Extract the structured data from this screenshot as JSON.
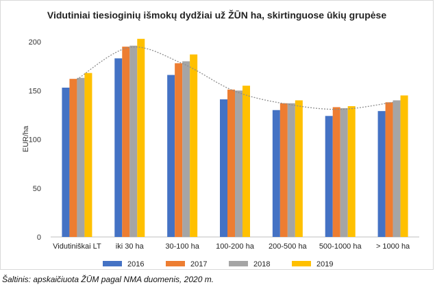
{
  "chart_data": {
    "type": "bar",
    "title": "Vidutiniai tiesioginių išmokų dydžiai už ŽŪN ha, skirtinguose ūkių grupėse",
    "xlabel": "",
    "ylabel": "EUR/ha",
    "ylim": [
      0,
      200
    ],
    "yticks": [
      0,
      50,
      100,
      150,
      200
    ],
    "grid": false,
    "legend": "bottom",
    "categories": [
      "Vidutiniškai LT",
      "iki 30 ha",
      "30-100 ha",
      "100-200 ha",
      "200-500 ha",
      "500-1000 ha",
      "> 1000 ha"
    ],
    "series": [
      {
        "name": "2016",
        "color": "#4472c4",
        "values": [
          153,
          183,
          166,
          141,
          130,
          124,
          129
        ]
      },
      {
        "name": "2017",
        "color": "#ed7d31",
        "values": [
          162,
          195,
          178,
          151,
          137,
          133,
          138
        ]
      },
      {
        "name": "2018",
        "color": "#a5a5a5",
        "values": [
          163,
          196,
          180,
          150,
          137,
          132,
          140
        ]
      },
      {
        "name": "2019",
        "color": "#ffc000",
        "values": [
          168,
          203,
          187,
          155,
          140,
          134,
          145
        ]
      }
    ],
    "trendline": {
      "style": "dotted",
      "color": "#8c8c8c"
    }
  },
  "source_note": "Šaltinis: apskaičiuota ŽŪM pagal NMA duomenis, 2020 m."
}
